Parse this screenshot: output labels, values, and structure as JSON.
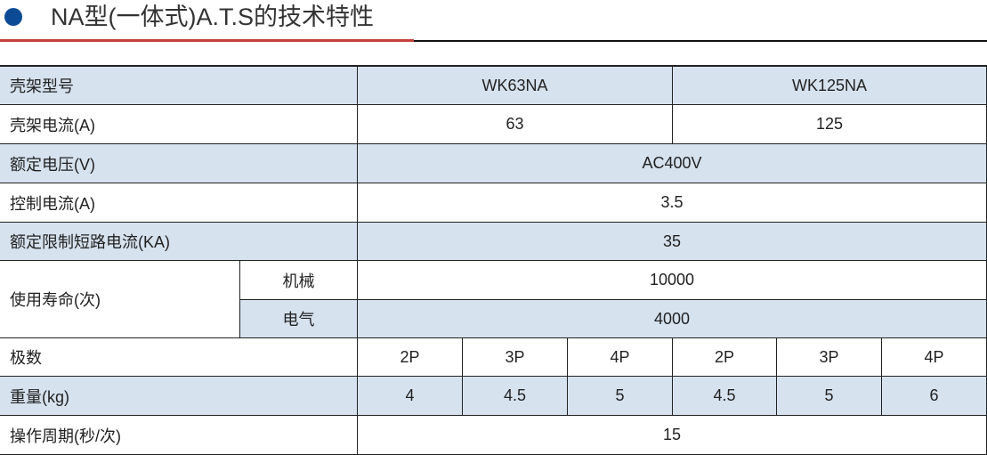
{
  "header": {
    "title": "NA型(一体式)A.T.S的技术特性",
    "bullet_color": "#0c4a96",
    "rule_color": "#c8403a"
  },
  "table": {
    "frame_model": {
      "label": "壳架型号",
      "values": [
        "WK63NA",
        "WK125NA"
      ]
    },
    "frame_current": {
      "label": "壳架电流(A)",
      "values": [
        "63",
        "125"
      ]
    },
    "rated_voltage": {
      "label": "额定电压(V)",
      "value": "AC400V"
    },
    "control_current": {
      "label": "控制电流(A)",
      "value": "3.5"
    },
    "short_circuit": {
      "label": "额定限制短路电流(KA)",
      "value": "35"
    },
    "service_life": {
      "label": "使用寿命(次)",
      "mechanical_label": "机械",
      "mechanical": "10000",
      "electrical_label": "电气",
      "electrical": "4000"
    },
    "poles": {
      "label": "极数",
      "values": [
        "2P",
        "3P",
        "4P",
        "2P",
        "3P",
        "4P"
      ]
    },
    "weight": {
      "label": "重量(kg)",
      "values": [
        "4",
        "4.5",
        "5",
        "4.5",
        "5",
        "6"
      ]
    },
    "cycle": {
      "label": "操作周期(秒/次)",
      "value": "15"
    }
  }
}
